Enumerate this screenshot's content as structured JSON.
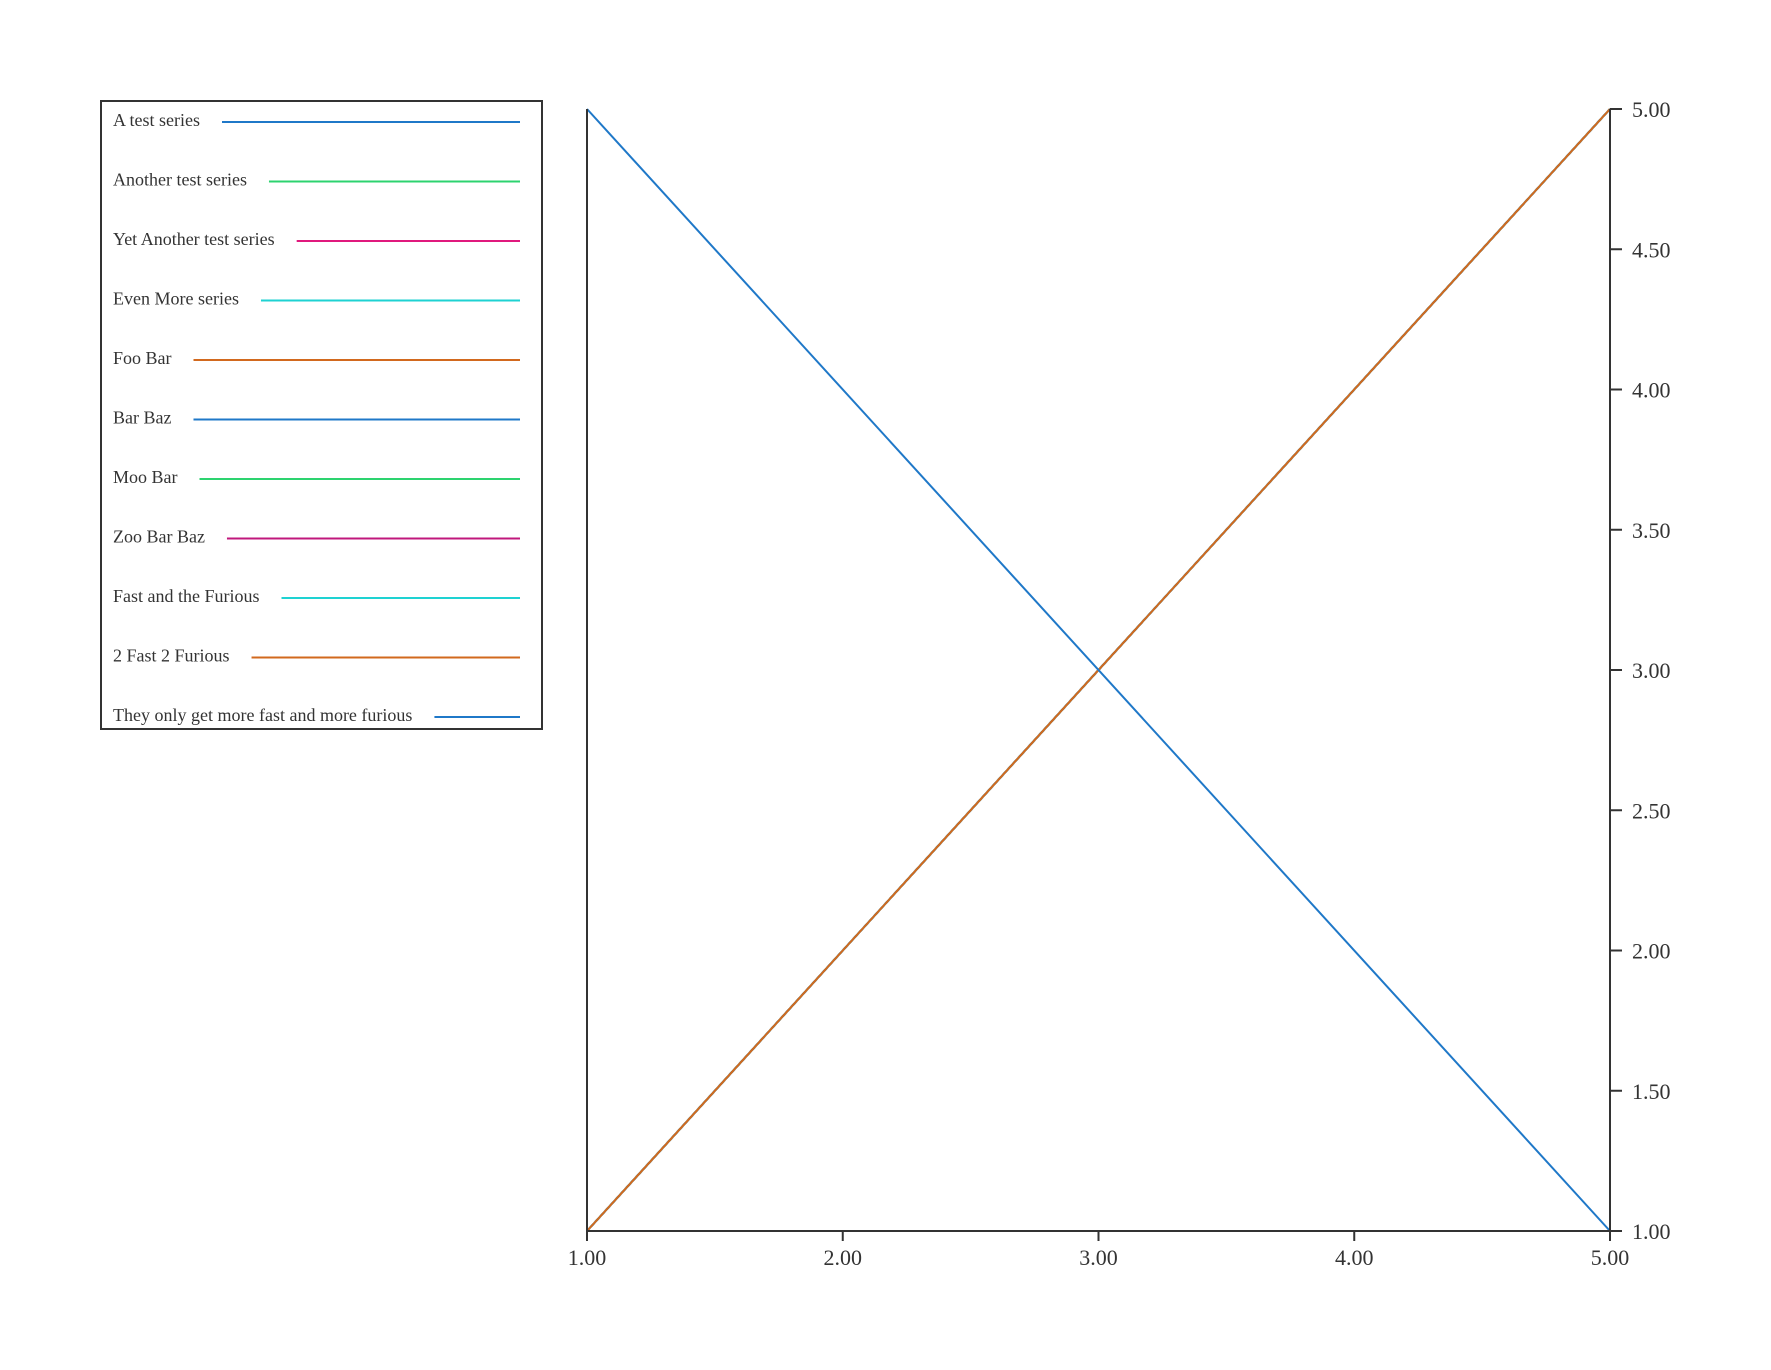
{
  "chart_data": {
    "type": "line",
    "title": "",
    "xlabel": "",
    "ylabel": "",
    "xlim": [
      1,
      5
    ],
    "ylim": [
      1,
      5
    ],
    "x_ticks": [
      "1.00",
      "2.00",
      "3.00",
      "4.00",
      "5.00"
    ],
    "y_ticks": [
      "1.00",
      "1.50",
      "2.00",
      "2.50",
      "3.00",
      "3.50",
      "4.00",
      "4.50",
      "5.00"
    ],
    "y_axis_side": "right",
    "grid": false,
    "legend_position": "top-left",
    "series": [
      {
        "name": "A test series",
        "color": "#1f78c8",
        "x": [
          1,
          5
        ],
        "y": [
          1,
          5
        ]
      },
      {
        "name": "Another test series",
        "color": "#2dd36f",
        "x": [
          1,
          5
        ],
        "y": [
          1,
          5
        ]
      },
      {
        "name": "Yet Another test series",
        "color": "#e0197d",
        "x": [
          1,
          5
        ],
        "y": [
          1,
          5
        ]
      },
      {
        "name": "Even More series",
        "color": "#1ed2d2",
        "x": [
          1,
          5
        ],
        "y": [
          1,
          5
        ]
      },
      {
        "name": "Foo Bar",
        "color": "#d2691e",
        "x": [
          1,
          5
        ],
        "y": [
          1,
          5
        ]
      },
      {
        "name": "Bar Baz",
        "color": "#1f78c8",
        "x": [
          1,
          5
        ],
        "y": [
          1,
          5
        ]
      },
      {
        "name": "Moo Bar",
        "color": "#2dd36f",
        "x": [
          1,
          5
        ],
        "y": [
          1,
          5
        ]
      },
      {
        "name": "Zoo Bar Baz",
        "color": "#c0187c",
        "x": [
          1,
          5
        ],
        "y": [
          1,
          5
        ]
      },
      {
        "name": "Fast and the Furious",
        "color": "#1ed2d2",
        "x": [
          1,
          5
        ],
        "y": [
          1,
          5
        ]
      },
      {
        "name": "2 Fast 2 Furious",
        "color": "#d2691e",
        "x": [
          1,
          5
        ],
        "y": [
          1,
          5
        ]
      },
      {
        "name": "They only get more fast and more furious",
        "color": "#1f78c8",
        "x": [
          1,
          5
        ],
        "y": [
          5,
          1
        ]
      }
    ]
  }
}
